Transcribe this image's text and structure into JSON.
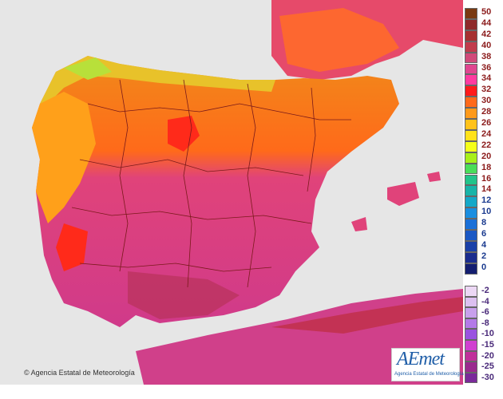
{
  "map": {
    "credit": "Agencia Estatal de Meteorología",
    "logo": {
      "main": "AEmet",
      "sub": "Agencia Estatal de Meteorología"
    }
  },
  "legend": {
    "warm": [
      {
        "label": "50",
        "color": "#7a3a12"
      },
      {
        "label": "44",
        "color": "#8e2a2a"
      },
      {
        "label": "42",
        "color": "#a63030"
      },
      {
        "label": "40",
        "color": "#c13c4c"
      },
      {
        "label": "38",
        "color": "#d14a7a"
      },
      {
        "label": "36",
        "color": "#e04690"
      },
      {
        "label": "34",
        "color": "#ff3aa0"
      },
      {
        "label": "32",
        "color": "#ff1a1a"
      },
      {
        "label": "30",
        "color": "#ff6a1a"
      },
      {
        "label": "28",
        "color": "#ff9a1a"
      },
      {
        "label": "26",
        "color": "#ffc21a"
      },
      {
        "label": "24",
        "color": "#ffe21a"
      },
      {
        "label": "22",
        "color": "#f5ff1a"
      },
      {
        "label": "20",
        "color": "#a8f01a"
      },
      {
        "label": "18",
        "color": "#4ade5a"
      },
      {
        "label": "16",
        "color": "#22c48a"
      },
      {
        "label": "14",
        "color": "#18b4a8"
      },
      {
        "label": "12",
        "color": "#14a8c8"
      },
      {
        "label": "10",
        "color": "#1a8ee0"
      },
      {
        "label": "8",
        "color": "#1a70d8"
      },
      {
        "label": "6",
        "color": "#1a58c4"
      },
      {
        "label": "4",
        "color": "#1a40a8"
      },
      {
        "label": "2",
        "color": "#1a2c8e"
      },
      {
        "label": "0",
        "color": "#141e70"
      }
    ],
    "cold": [
      {
        "label": "-2",
        "color": "#ecd8f5"
      },
      {
        "label": "-4",
        "color": "#dcc0f0"
      },
      {
        "label": "-6",
        "color": "#c8a0ec"
      },
      {
        "label": "-8",
        "color": "#b47ae8"
      },
      {
        "label": "-10",
        "color": "#9a52e0"
      },
      {
        "label": "-15",
        "color": "#d040d0"
      },
      {
        "label": "-20",
        "color": "#c0309a"
      },
      {
        "label": "-25",
        "color": "#9a2a8e"
      },
      {
        "label": "-30",
        "color": "#7a2a9a"
      }
    ]
  }
}
